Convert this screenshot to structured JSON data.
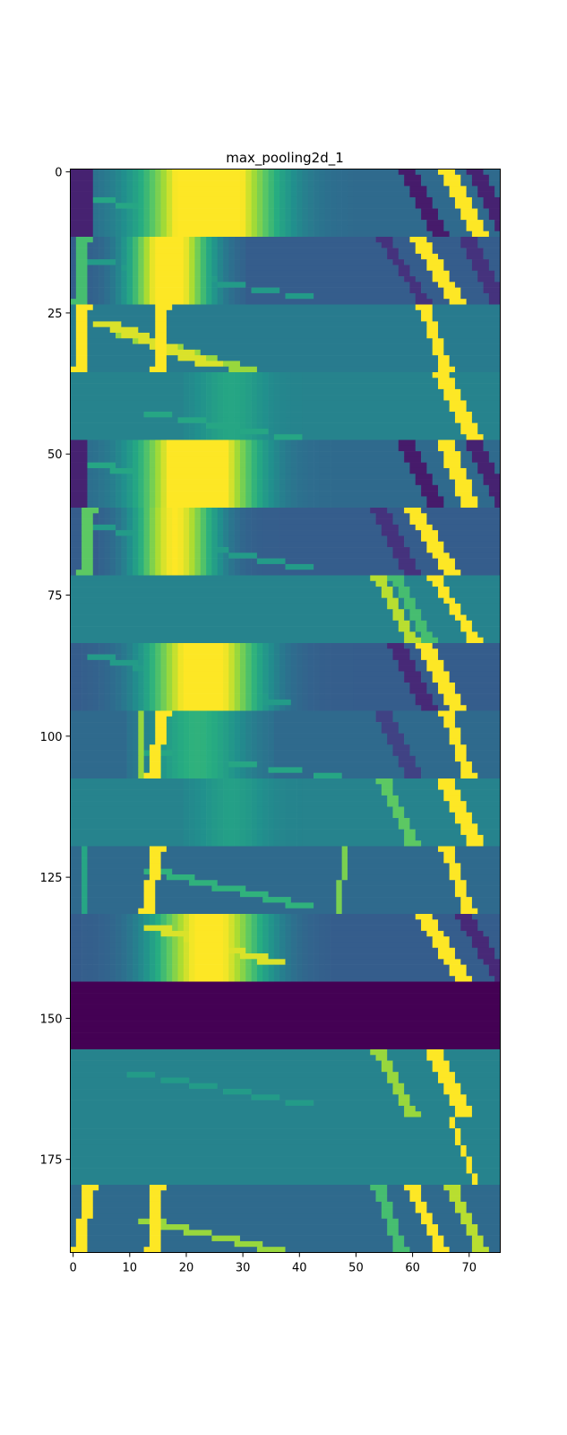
{
  "chart_data": {
    "type": "heatmap",
    "title": "max_pooling2d_1",
    "xlabel": "",
    "ylabel": "",
    "xlim": [
      -0.5,
      75.5
    ],
    "ylim": [
      191.5,
      -0.5
    ],
    "xticks": [
      0,
      10,
      20,
      30,
      40,
      50,
      60,
      70
    ],
    "yticks": [
      0,
      25,
      50,
      75,
      100,
      125,
      150,
      175
    ],
    "colormap": "viridis",
    "grid": false,
    "legend": "none",
    "bands": [
      {
        "y": [
          0,
          12
        ],
        "bg": 0.35,
        "features": [
          {
            "type": "blob",
            "x0": 2,
            "x1": 49,
            "xc": 24,
            "amp": 0.85,
            "w": 8
          },
          {
            "type": "stripe",
            "x": [
              66,
              72
            ],
            "w": 3,
            "v": 1.0
          },
          {
            "type": "stripe",
            "x": [
              59,
              65
            ],
            "w": 3,
            "v": 0.08
          },
          {
            "type": "stripe",
            "x": [
              71,
              77
            ],
            "w": 3,
            "v": 0.1
          },
          {
            "type": "diag",
            "x": [
              5,
              28
            ],
            "y": [
              5,
              10
            ],
            "v": 0.6
          },
          {
            "type": "edge",
            "x0": 0,
            "x1": 3,
            "v": 0.1
          }
        ]
      },
      {
        "y": [
          12,
          24
        ],
        "bg": 0.3,
        "features": [
          {
            "type": "blob",
            "x0": 2,
            "x1": 30,
            "xc": 17,
            "amp": 0.8,
            "w": 5
          },
          {
            "type": "stripe",
            "x": [
              61,
              68
            ],
            "w": 3,
            "v": 1.0
          },
          {
            "type": "stripe",
            "x": [
              55,
              62
            ],
            "w": 2,
            "v": 0.15
          },
          {
            "type": "stripe",
            "x": [
              70,
              75
            ],
            "w": 3,
            "v": 0.15
          },
          {
            "type": "diag",
            "x": [
              5,
              40
            ],
            "y": [
              16,
              22
            ],
            "v": 0.55
          },
          {
            "type": "stripe",
            "x": [
              2,
              1
            ],
            "w": 2,
            "v": 0.7
          }
        ]
      },
      {
        "y": [
          24,
          36
        ],
        "bg": 0.42,
        "features": [
          {
            "type": "stripe",
            "x": [
              2,
              1
            ],
            "w": 2,
            "v": 1.0
          },
          {
            "type": "stripe",
            "x": [
              16,
              15
            ],
            "w": 2,
            "v": 1.0
          },
          {
            "type": "stripe",
            "x": [
              62,
              66
            ],
            "w": 2,
            "v": 1.0
          },
          {
            "type": "diag",
            "x": [
              6,
              24
            ],
            "y": [
              27,
              34
            ],
            "v": 0.95
          },
          {
            "type": "diag",
            "x": [
              10,
              30
            ],
            "y": [
              29,
              35
            ],
            "v": 0.85
          }
        ]
      },
      {
        "y": [
          36,
          48
        ],
        "bg": 0.45,
        "features": [
          {
            "type": "stripe",
            "x": [
              65,
              71
            ],
            "w": 3,
            "v": 1.0
          },
          {
            "type": "diag",
            "x": [
              15,
              38
            ],
            "y": [
              43,
              47
            ],
            "v": 0.6
          },
          {
            "type": "blob",
            "x0": 20,
            "x1": 40,
            "xc": 28,
            "amp": 0.15,
            "w": 4
          }
        ]
      },
      {
        "y": [
          48,
          60
        ],
        "bg": 0.35,
        "features": [
          {
            "type": "blob",
            "x0": 2,
            "x1": 49,
            "xc": 22,
            "amp": 0.85,
            "w": 7
          },
          {
            "type": "stripe",
            "x": [
              66,
              70
            ],
            "w": 3,
            "v": 1.0
          },
          {
            "type": "stripe",
            "x": [
              59,
              64
            ],
            "w": 3,
            "v": 0.08
          },
          {
            "type": "stripe",
            "x": [
              71,
              76
            ],
            "w": 3,
            "v": 0.1
          },
          {
            "type": "diag",
            "x": [
              5,
              30
            ],
            "y": [
              52,
              58
            ],
            "v": 0.6
          },
          {
            "type": "edge",
            "x0": 0,
            "x1": 2,
            "v": 0.1
          }
        ]
      },
      {
        "y": [
          60,
          72
        ],
        "bg": 0.3,
        "features": [
          {
            "type": "blob",
            "x0": 5,
            "x1": 40,
            "xc": 18,
            "amp": 0.7,
            "w": 5
          },
          {
            "type": "stripe",
            "x": [
              60,
              67
            ],
            "w": 3,
            "v": 1.0
          },
          {
            "type": "stripe",
            "x": [
              54,
              60
            ],
            "w": 3,
            "v": 0.15
          },
          {
            "type": "stripe",
            "x": [
              3,
              2
            ],
            "w": 2,
            "v": 0.75
          },
          {
            "type": "diag",
            "x": [
              5,
              40
            ],
            "y": [
              63,
              70
            ],
            "v": 0.55
          }
        ]
      },
      {
        "y": [
          72,
          84
        ],
        "bg": 0.45,
        "features": [
          {
            "type": "stripe",
            "x": [
              54,
              60
            ],
            "w": 2,
            "v": 0.9
          },
          {
            "type": "stripe",
            "x": [
              64,
              71
            ],
            "w": 2,
            "v": 1.0
          },
          {
            "type": "stripe",
            "x": [
              57,
              63
            ],
            "w": 2,
            "v": 0.7
          }
        ]
      },
      {
        "y": [
          84,
          96
        ],
        "bg": 0.3,
        "features": [
          {
            "type": "blob",
            "x0": 2,
            "x1": 49,
            "xc": 23,
            "amp": 0.8,
            "w": 7
          },
          {
            "type": "stripe",
            "x": [
              62,
              68
            ],
            "w": 3,
            "v": 1.0
          },
          {
            "type": "stripe",
            "x": [
              57,
              63
            ],
            "w": 3,
            "v": 0.12
          },
          {
            "type": "diag",
            "x": [
              5,
              36
            ],
            "y": [
              86,
              94
            ],
            "v": 0.55
          }
        ]
      },
      {
        "y": [
          96,
          108
        ],
        "bg": 0.35,
        "features": [
          {
            "type": "stripe",
            "x": [
              16,
              14
            ],
            "w": 2,
            "v": 1.0
          },
          {
            "type": "stripe",
            "x": [
              12,
              12
            ],
            "w": 1,
            "v": 0.85
          },
          {
            "type": "stripe",
            "x": [
              66,
              70
            ],
            "w": 2,
            "v": 1.0
          },
          {
            "type": "stripe",
            "x": [
              55,
              60
            ],
            "w": 3,
            "v": 0.2
          },
          {
            "type": "blob",
            "x0": 10,
            "x1": 35,
            "xc": 22,
            "amp": 0.3,
            "w": 6
          },
          {
            "type": "diag",
            "x": [
              15,
              45
            ],
            "y": [
              103,
              107
            ],
            "v": 0.6
          }
        ]
      },
      {
        "y": [
          108,
          120
        ],
        "bg": 0.45,
        "features": [
          {
            "type": "stripe",
            "x": [
              55,
              60
            ],
            "w": 2,
            "v": 0.75
          },
          {
            "type": "stripe",
            "x": [
              66,
              71
            ],
            "w": 3,
            "v": 1.0
          },
          {
            "type": "blob",
            "x0": 20,
            "x1": 40,
            "xc": 28,
            "amp": 0.12,
            "w": 4
          }
        ]
      },
      {
        "y": [
          120,
          132
        ],
        "bg": 0.35,
        "features": [
          {
            "type": "stripe",
            "x": [
              15,
              13
            ],
            "w": 2,
            "v": 1.0
          },
          {
            "type": "stripe",
            "x": [
              48,
              47
            ],
            "w": 1,
            "v": 0.8
          },
          {
            "type": "stripe",
            "x": [
              66,
              70
            ],
            "w": 2,
            "v": 1.0
          },
          {
            "type": "diag",
            "x": [
              15,
              40
            ],
            "y": [
              124,
              130
            ],
            "v": 0.65
          },
          {
            "type": "stripe",
            "x": [
              2,
              2
            ],
            "w": 1,
            "v": 0.6
          }
        ]
      },
      {
        "y": [
          132,
          144
        ],
        "bg": 0.3,
        "features": [
          {
            "type": "blob",
            "x0": 2,
            "x1": 45,
            "xc": 24,
            "amp": 0.75,
            "w": 7
          },
          {
            "type": "diag",
            "x": [
              15,
              35
            ],
            "y": [
              134,
              140
            ],
            "v": 0.95
          },
          {
            "type": "stripe",
            "x": [
              62,
              69
            ],
            "w": 3,
            "v": 1.0
          },
          {
            "type": "stripe",
            "x": [
              69,
              76
            ],
            "w": 3,
            "v": 0.12
          }
        ]
      },
      {
        "y": [
          144,
          156
        ],
        "bg": 0.0,
        "features": []
      },
      {
        "y": [
          156,
          168
        ],
        "bg": 0.45,
        "features": [
          {
            "type": "stripe",
            "x": [
              54,
              60
            ],
            "w": 2,
            "v": 0.85
          },
          {
            "type": "stripe",
            "x": [
              64,
              69
            ],
            "w": 3,
            "v": 1.0
          },
          {
            "type": "diag",
            "x": [
              12,
              40
            ],
            "y": [
              160,
              165
            ],
            "v": 0.55
          }
        ]
      },
      {
        "y": [
          168,
          180
        ],
        "bg": 0.45,
        "features": [
          {
            "type": "stripe",
            "x": [
              67,
              71
            ],
            "w": 1,
            "v": 1.0
          }
        ]
      },
      {
        "y": [
          180,
          192
        ],
        "bg": 0.35,
        "features": [
          {
            "type": "stripe",
            "x": [
              3,
              1
            ],
            "w": 2,
            "v": 1.0
          },
          {
            "type": "stripe",
            "x": [
              15,
              14
            ],
            "w": 2,
            "v": 1.0
          },
          {
            "type": "stripe",
            "x": [
              60,
              65
            ],
            "w": 2,
            "v": 1.0
          },
          {
            "type": "stripe",
            "x": [
              67,
              72
            ],
            "w": 2,
            "v": 0.9
          },
          {
            "type": "diag",
            "x": [
              14,
              35
            ],
            "y": [
              186,
              191
            ],
            "v": 0.85
          },
          {
            "type": "stripe",
            "x": [
              54,
              58
            ],
            "w": 2,
            "v": 0.7
          }
        ]
      }
    ]
  }
}
